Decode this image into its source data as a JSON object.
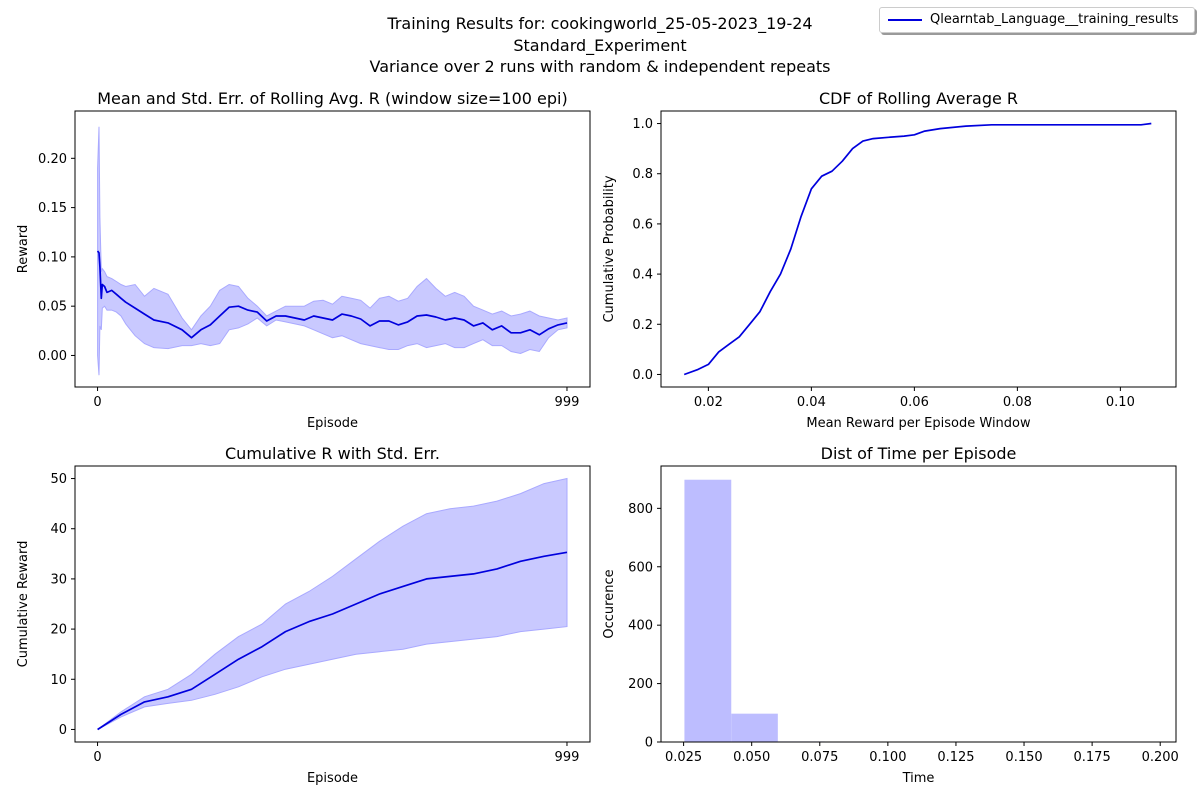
{
  "figure": {
    "title_line1": "Training Results for: cookingworld_25-05-2023_19-24",
    "title_line2": "Standard_Experiment",
    "title_line3": "Variance over 2 runs with random & independent repeats",
    "legend_label": "Qlearntab_Language__training_results",
    "colors": {
      "line": "#0000dd",
      "band": "#c9c9ff",
      "band_edge": "#a9a9ff",
      "hist": "#bdbdff"
    }
  },
  "chart_data": [
    {
      "type": "line",
      "title": "Mean and Std. Err. of Rolling Avg. R (window size=100 epi)",
      "xlabel": "Episode",
      "ylabel": "Reward",
      "x_ticks": [
        0,
        999
      ],
      "y_ticks": [
        0.0,
        0.05,
        0.1,
        0.15,
        0.2
      ],
      "xlim": [
        -48,
        1048
      ],
      "ylim": [
        -0.032,
        0.248
      ],
      "series": [
        {
          "x": [
            0,
            3,
            5,
            8,
            10,
            15,
            20,
            30,
            40,
            50,
            60,
            80,
            100,
            120,
            150,
            180,
            200,
            220,
            240,
            260,
            280,
            300,
            320,
            340,
            360,
            380,
            400,
            420,
            440,
            460,
            480,
            500,
            520,
            540,
            560,
            580,
            600,
            620,
            640,
            660,
            680,
            700,
            720,
            740,
            760,
            780,
            800,
            820,
            840,
            860,
            880,
            900,
            920,
            940,
            960,
            980,
            999
          ],
          "y": [
            0.106,
            0.104,
            0.09,
            0.058,
            0.072,
            0.07,
            0.064,
            0.066,
            0.062,
            0.058,
            0.054,
            0.048,
            0.042,
            0.036,
            0.033,
            0.026,
            0.018,
            0.026,
            0.031,
            0.04,
            0.049,
            0.05,
            0.046,
            0.044,
            0.035,
            0.04,
            0.04,
            0.038,
            0.036,
            0.04,
            0.038,
            0.036,
            0.042,
            0.04,
            0.037,
            0.03,
            0.035,
            0.035,
            0.031,
            0.034,
            0.04,
            0.041,
            0.039,
            0.036,
            0.038,
            0.036,
            0.03,
            0.033,
            0.026,
            0.03,
            0.023,
            0.023,
            0.026,
            0.021,
            0.027,
            0.031,
            0.033
          ],
          "lower": [
            0.0,
            -0.02,
            0.03,
            0.026,
            0.048,
            0.05,
            0.046,
            0.046,
            0.044,
            0.04,
            0.032,
            0.02,
            0.012,
            0.008,
            0.007,
            0.01,
            0.01,
            0.012,
            0.01,
            0.012,
            0.026,
            0.028,
            0.032,
            0.038,
            0.03,
            0.036,
            0.034,
            0.032,
            0.03,
            0.026,
            0.022,
            0.018,
            0.02,
            0.016,
            0.012,
            0.01,
            0.008,
            0.006,
            0.006,
            0.01,
            0.012,
            0.008,
            0.01,
            0.012,
            0.008,
            0.008,
            0.012,
            0.016,
            0.01,
            0.01,
            0.004,
            0.002,
            0.006,
            0.004,
            0.018,
            0.026,
            0.028
          ],
          "upper": [
            0.19,
            0.232,
            0.14,
            0.085,
            0.088,
            0.085,
            0.08,
            0.078,
            0.075,
            0.072,
            0.07,
            0.072,
            0.06,
            0.068,
            0.062,
            0.038,
            0.026,
            0.04,
            0.05,
            0.066,
            0.072,
            0.07,
            0.058,
            0.05,
            0.04,
            0.045,
            0.05,
            0.05,
            0.05,
            0.055,
            0.056,
            0.052,
            0.06,
            0.058,
            0.056,
            0.048,
            0.058,
            0.06,
            0.055,
            0.058,
            0.07,
            0.078,
            0.068,
            0.06,
            0.064,
            0.06,
            0.05,
            0.046,
            0.042,
            0.045,
            0.04,
            0.042,
            0.045,
            0.04,
            0.038,
            0.036,
            0.038
          ]
        }
      ]
    },
    {
      "type": "line",
      "title": "CDF of Rolling Average R",
      "xlabel": "Mean Reward per Episode Window",
      "ylabel": "Cumulative Probability",
      "x_ticks": [
        0.02,
        0.04,
        0.06,
        0.08,
        0.1
      ],
      "y_ticks": [
        0.0,
        0.2,
        0.4,
        0.6,
        0.8,
        1.0
      ],
      "xlim": [
        0.0108,
        0.1108
      ],
      "ylim": [
        -0.05,
        1.05
      ],
      "series": [
        {
          "x": [
            0.0153,
            0.018,
            0.02,
            0.022,
            0.024,
            0.026,
            0.028,
            0.03,
            0.032,
            0.034,
            0.036,
            0.038,
            0.04,
            0.042,
            0.044,
            0.046,
            0.048,
            0.05,
            0.052,
            0.055,
            0.058,
            0.06,
            0.062,
            0.065,
            0.07,
            0.075,
            0.08,
            0.09,
            0.1,
            0.104,
            0.106
          ],
          "y": [
            0.0,
            0.02,
            0.04,
            0.09,
            0.12,
            0.15,
            0.2,
            0.25,
            0.33,
            0.4,
            0.5,
            0.63,
            0.74,
            0.79,
            0.81,
            0.85,
            0.9,
            0.93,
            0.94,
            0.945,
            0.95,
            0.955,
            0.97,
            0.98,
            0.99,
            0.995,
            0.995,
            0.995,
            0.995,
            0.995,
            1.0
          ]
        }
      ]
    },
    {
      "type": "line",
      "title": "Cumulative R with Std. Err.",
      "xlabel": "Episode",
      "ylabel": "Cumulative Reward",
      "x_ticks": [
        0,
        999
      ],
      "y_ticks": [
        0,
        10,
        20,
        30,
        40,
        50
      ],
      "xlim": [
        -48,
        1048
      ],
      "ylim": [
        -2.5,
        52.5
      ],
      "series": [
        {
          "x": [
            0,
            50,
            100,
            150,
            200,
            250,
            300,
            350,
            400,
            450,
            500,
            550,
            600,
            650,
            700,
            750,
            800,
            850,
            900,
            950,
            999
          ],
          "y": [
            0,
            3,
            5.5,
            6.5,
            8,
            11,
            14,
            16.5,
            19.5,
            21.5,
            23,
            25,
            27,
            28.5,
            30,
            30.5,
            31,
            32,
            33.5,
            34.5,
            35.3
          ],
          "lower": [
            0,
            2.5,
            4.5,
            5.2,
            5.8,
            7,
            8.5,
            10.5,
            12,
            13,
            14,
            15,
            15.5,
            16,
            17,
            17.5,
            18,
            18.5,
            19.5,
            20,
            20.5
          ],
          "upper": [
            0,
            3.5,
            6.5,
            8,
            11,
            15,
            18.5,
            21,
            25,
            27.5,
            30.5,
            34,
            37.5,
            40.5,
            43,
            44,
            44.5,
            45.5,
            47,
            49,
            50
          ]
        }
      ]
    },
    {
      "type": "bar",
      "title": "Dist of Time per Episode",
      "xlabel": "Time",
      "ylabel": "Occurence",
      "x_ticks": [
        0.025,
        0.05,
        0.075,
        0.1,
        0.125,
        0.15,
        0.175,
        0.2
      ],
      "y_ticks": [
        0,
        200,
        400,
        600,
        800
      ],
      "xlim": [
        0.0167,
        0.2058
      ],
      "ylim": [
        0,
        945
      ],
      "bin_edges": [
        0.0253,
        0.0425,
        0.0596,
        0.0768,
        0.094,
        0.1112,
        0.1283,
        0.1455,
        0.1627,
        0.1798,
        0.197
      ],
      "values": [
        898,
        97,
        2,
        1,
        0,
        0,
        0,
        0,
        1,
        1
      ]
    }
  ]
}
